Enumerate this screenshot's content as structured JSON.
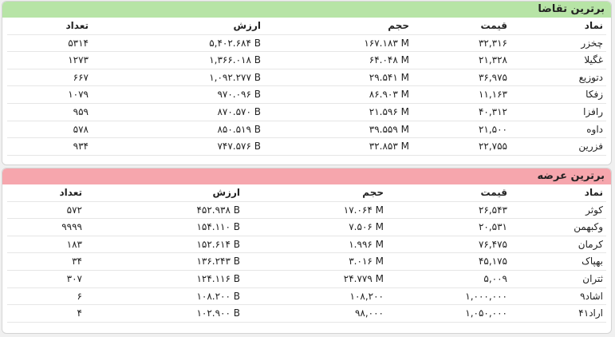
{
  "demand": {
    "title": "برترین تقاضا",
    "headers": {
      "symbol": "نماد",
      "price": "قیمت",
      "volume": "حجم",
      "value": "ارزش",
      "count": "تعداد"
    },
    "rows": [
      {
        "symbol": "چخزر",
        "price": "۳۲,۳۱۶",
        "volume": "۱۶۷.۱۸۳ M",
        "value": "۵,۴۰۲.۶۸۴ B",
        "count": "۵۳۱۴"
      },
      {
        "symbol": "غگیلا",
        "price": "۲۱,۳۲۸",
        "volume": "۶۴.۰۴۸ M",
        "value": "۱,۳۶۶.۰۱۸ B",
        "count": "۱۲۷۳"
      },
      {
        "symbol": "دتوزیع",
        "price": "۳۶,۹۷۵",
        "volume": "۲۹.۵۴۱ M",
        "value": "۱,۰۹۲.۲۷۷ B",
        "count": "۶۶۷"
      },
      {
        "symbol": "زفکا",
        "price": "۱۱,۱۶۳",
        "volume": "۸۶.۹۰۳ M",
        "value": "۹۷۰.۰۹۶ B",
        "count": "۱۰۷۹"
      },
      {
        "symbol": "رافزا",
        "price": "۴۰,۳۱۲",
        "volume": "۲۱.۵۹۶ M",
        "value": "۸۷۰.۵۷۰ B",
        "count": "۹۵۹"
      },
      {
        "symbol": "داوه",
        "price": "۲۱,۵۰۰",
        "volume": "۳۹.۵۵۹ M",
        "value": "۸۵۰.۵۱۹ B",
        "count": "۵۷۸"
      },
      {
        "symbol": "فزرین",
        "price": "۲۲,۷۵۵",
        "volume": "۳۲.۸۵۳ M",
        "value": "۷۴۷.۵۷۶ B",
        "count": "۹۳۴"
      }
    ]
  },
  "supply": {
    "title": "برترین عرضه",
    "headers": {
      "symbol": "نماد",
      "price": "قیمت",
      "volume": "حجم",
      "value": "ارزش",
      "count": "تعداد"
    },
    "rows": [
      {
        "symbol": "کوثر",
        "price": "۲۶,۵۴۳",
        "volume": "۱۷.۰۶۴ M",
        "value": "۴۵۲.۹۳۸ B",
        "count": "۵۷۲"
      },
      {
        "symbol": "وکبهمن",
        "price": "۲۰,۵۳۱",
        "volume": "۷.۵۰۶ M",
        "value": "۱۵۴.۱۱۰ B",
        "count": "۹۹۹۹"
      },
      {
        "symbol": "کرمان",
        "price": "۷۶,۴۷۵",
        "volume": "۱.۹۹۶ M",
        "value": "۱۵۲.۶۱۴ B",
        "count": "۱۸۳"
      },
      {
        "symbol": "بهپاک",
        "price": "۴۵,۱۷۵",
        "volume": "۳.۰۱۶ M",
        "value": "۱۳۶.۲۴۳ B",
        "count": "۳۴"
      },
      {
        "symbol": "ثتران",
        "price": "۵,۰۰۹",
        "volume": "۲۴.۷۷۹ M",
        "value": "۱۲۴.۱۱۶ B",
        "count": "۳۰۷"
      },
      {
        "symbol": "اشاد۹",
        "price": "۱,۰۰۰,۰۰۰",
        "volume": "۱۰۸,۲۰۰",
        "value": "۱۰۸.۲۰۰ B",
        "count": "۶"
      },
      {
        "symbol": "اراد۴۱",
        "price": "۱,۰۵۰,۰۰۰",
        "volume": "۹۸,۰۰۰",
        "value": "۱۰۲.۹۰۰ B",
        "count": "۴"
      }
    ]
  }
}
